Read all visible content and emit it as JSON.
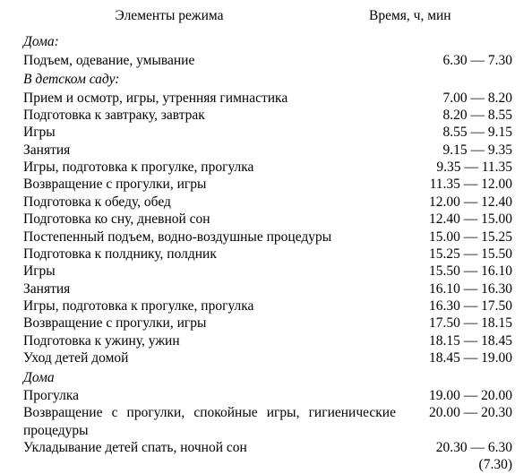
{
  "header": {
    "left": "Элементы режима",
    "right": "Время, ч, мин"
  },
  "sections": [
    {
      "title": "Дома:",
      "rows": [
        {
          "label": "Подъем, одевание, умывание",
          "time": "6.30 — 7.30"
        }
      ]
    },
    {
      "title": "В детском саду:",
      "rows": [
        {
          "label": "Прием и осмотр, игры, утренняя гимнастика",
          "time": "7.00 — 8.20"
        },
        {
          "label": "Подготовка к завтраку, завтрак",
          "time": "8.20 — 8.55"
        },
        {
          "label": "Игры",
          "time": "8.55 — 9.15"
        },
        {
          "label": "Занятия",
          "time": "9.15 — 9.35"
        },
        {
          "label": "Игры, подготовка к прогулке, прогулка",
          "time": "9.35 — 11.35"
        },
        {
          "label": "Возвращение с прогулки, игры",
          "time": "11.35 — 12.00"
        },
        {
          "label": "Подготовка к обеду, обед",
          "time": "12.00 — 12.40"
        },
        {
          "label": "Подготовка ко сну, дневной сон",
          "time": "12.40 — 15.00"
        },
        {
          "label": "Постепенный подъем, водно-воздушные процеду­ры",
          "time": "15.00 — 15.25"
        },
        {
          "label": "Подготовка к полднику, полдник",
          "time": "15.25 — 15.50"
        },
        {
          "label": "Игры",
          "time": "15.50 — 16.10"
        },
        {
          "label": "Занятия",
          "time": "16.10 — 16.30"
        },
        {
          "label": "Игры, подготовка к прогулке, прогулка",
          "time": "16.30 — 17.50"
        },
        {
          "label": "Возвращение с прогулки, игры",
          "time": "17.50 — 18.15"
        },
        {
          "label": "Подготовка к ужину, ужин",
          "time": "18.15 — 18.45"
        },
        {
          "label": "Уход детей домой",
          "time": "18.45 — 19.00"
        }
      ]
    },
    {
      "title": "Дома",
      "rows": [
        {
          "label": "Прогулка",
          "time": "19.00 — 20.00"
        },
        {
          "label": "Возвращение с прогулки, спокойные игры, гигиени­ческие процедуры",
          "time": "20.00 — 20.30"
        },
        {
          "label": "Укладывание детей спать, ночной сон",
          "time": "20.30 — 6.30"
        }
      ],
      "footer_paren": "(7.30)"
    }
  ]
}
